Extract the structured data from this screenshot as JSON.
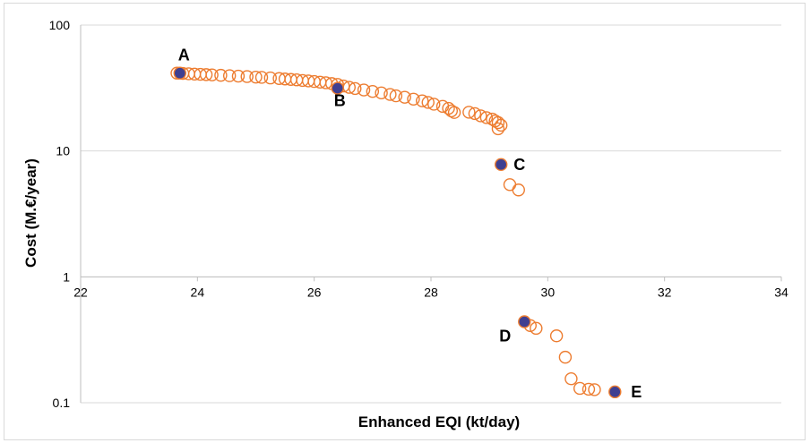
{
  "chart_data": {
    "type": "scatter",
    "title": "",
    "xlabel": "Enhanced EQI (kt/day)",
    "ylabel": "Cost (M.€/year)",
    "x_ticks": [
      "22",
      "24",
      "26",
      "28",
      "30",
      "32",
      "34"
    ],
    "y_ticks": [
      "100",
      "10",
      "1",
      "0.1"
    ],
    "xlim": [
      22,
      34
    ],
    "ylim": [
      0.1,
      100
    ],
    "y_scale": "log",
    "x_axis_crosses_y_at": 1,
    "grid": "horizontal",
    "legend": "none",
    "colors": {
      "open_marker": "#ED7D31",
      "highlight_marker": "#3F3F91",
      "grid": "#d9d9d9"
    },
    "series": [
      {
        "marker": "open-circle",
        "points": [
          [
            23.65,
            41.5
          ],
          [
            23.75,
            41.3
          ],
          [
            23.85,
            41.0
          ],
          [
            23.95,
            40.8
          ],
          [
            24.05,
            40.6
          ],
          [
            24.15,
            40.4
          ],
          [
            24.25,
            40.2
          ],
          [
            24.4,
            39.9
          ],
          [
            24.55,
            39.6
          ],
          [
            24.7,
            39.3
          ],
          [
            24.85,
            39.0
          ],
          [
            25.0,
            38.6
          ],
          [
            25.1,
            38.4
          ],
          [
            25.25,
            38.0
          ],
          [
            25.4,
            37.6
          ],
          [
            25.5,
            37.3
          ],
          [
            25.6,
            37.0
          ],
          [
            25.7,
            36.7
          ],
          [
            25.8,
            36.3
          ],
          [
            25.9,
            36.0
          ],
          [
            26.0,
            35.6
          ],
          [
            26.1,
            35.2
          ],
          [
            26.2,
            34.8
          ],
          [
            26.3,
            34.3
          ],
          [
            26.4,
            33.8
          ],
          [
            26.5,
            32.8
          ],
          [
            26.6,
            32.0
          ],
          [
            26.7,
            31.3
          ],
          [
            26.85,
            30.5
          ],
          [
            27.0,
            29.7
          ],
          [
            27.15,
            28.9
          ],
          [
            27.3,
            28.1
          ],
          [
            27.4,
            27.4
          ],
          [
            27.55,
            26.7
          ],
          [
            27.7,
            25.8
          ],
          [
            27.85,
            25.0
          ],
          [
            27.95,
            24.3
          ],
          [
            28.05,
            23.5
          ],
          [
            28.2,
            22.6
          ],
          [
            28.3,
            21.8
          ],
          [
            28.35,
            20.8
          ],
          [
            28.4,
            20.2
          ],
          [
            28.65,
            20.3
          ],
          [
            28.75,
            19.8
          ],
          [
            28.85,
            19.0
          ],
          [
            28.95,
            18.4
          ],
          [
            29.05,
            17.9
          ],
          [
            29.1,
            17.3
          ],
          [
            29.15,
            16.8
          ],
          [
            29.2,
            16.0
          ],
          [
            29.15,
            15.0
          ],
          [
            29.35,
            5.4
          ],
          [
            29.5,
            4.9
          ],
          [
            29.7,
            0.41
          ],
          [
            29.8,
            0.39
          ],
          [
            30.15,
            0.34
          ],
          [
            30.3,
            0.23
          ],
          [
            30.4,
            0.155
          ],
          [
            30.55,
            0.13
          ],
          [
            30.7,
            0.128
          ],
          [
            30.8,
            0.127
          ]
        ]
      },
      {
        "marker": "filled-circle",
        "points": [
          {
            "label": "A",
            "x": 23.7,
            "y": 41.5
          },
          {
            "label": "B",
            "x": 26.4,
            "y": 31.5
          },
          {
            "label": "C",
            "x": 29.2,
            "y": 7.8
          },
          {
            "label": "D",
            "x": 29.6,
            "y": 0.44
          },
          {
            "label": "E",
            "x": 31.15,
            "y": 0.122
          }
        ]
      }
    ]
  }
}
